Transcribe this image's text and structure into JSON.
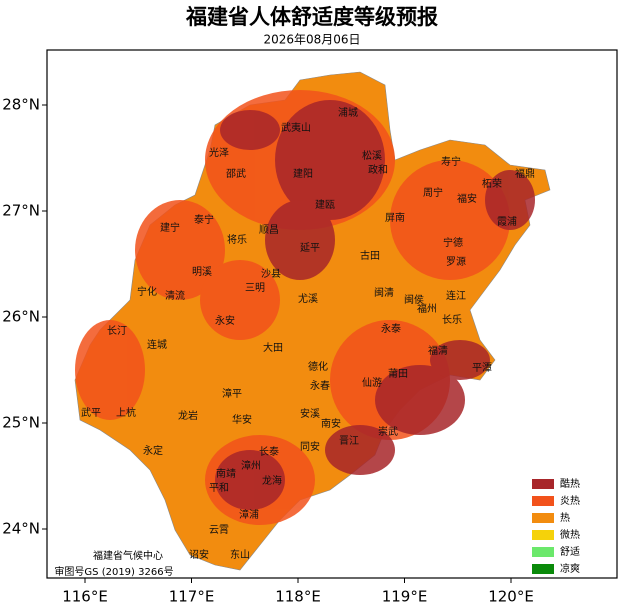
{
  "title": "福建省人体舒适度等级预报",
  "date": "2026年08月06日",
  "lon_ticks": [
    {
      "value": 116,
      "label": "116°E"
    },
    {
      "value": 117,
      "label": "117°E"
    },
    {
      "value": 118,
      "label": "118°E"
    },
    {
      "value": 119,
      "label": "119°E"
    },
    {
      "value": 120,
      "label": "120°E"
    }
  ],
  "lat_ticks": [
    {
      "value": 28,
      "label": "28°N"
    },
    {
      "value": 27,
      "label": "27°N"
    },
    {
      "value": 26,
      "label": "26°N"
    },
    {
      "value": 25,
      "label": "25°N"
    },
    {
      "value": 24,
      "label": "24°N"
    }
  ],
  "legend": [
    {
      "label": "酷热",
      "color": "#a8262a"
    },
    {
      "label": "炎热",
      "color": "#f2521b"
    },
    {
      "label": "热",
      "color": "#f28c0f"
    },
    {
      "label": "微热",
      "color": "#f5d20a"
    },
    {
      "label": "舒适",
      "color": "#6be86b"
    },
    {
      "label": "凉爽",
      "color": "#0a8a0a"
    }
  ],
  "places": [
    "浦城",
    "武夷山",
    "光泽",
    "松溪",
    "政和",
    "寿宁",
    "邵武",
    "建阳",
    "福鼎",
    "柘荣",
    "周宁",
    "福安",
    "建瓯",
    "屏南",
    "霞浦",
    "泰宁",
    "建宁",
    "将乐",
    "顺昌",
    "延平",
    "宁德",
    "古田",
    "罗源",
    "明溪",
    "沙县",
    "宁化",
    "清流",
    "三明",
    "闽清",
    "连江",
    "尤溪",
    "闽侯",
    "福州",
    "长乐",
    "永安",
    "长汀",
    "永泰",
    "连城",
    "福清",
    "大田",
    "平潭",
    "德化",
    "莆田",
    "永春",
    "仙游",
    "漳平",
    "武平",
    "上杭",
    "龙岩",
    "华安",
    "安溪",
    "南安",
    "晋江",
    "崇武",
    "同安",
    "长泰",
    "永定",
    "南靖",
    "漳州",
    "龙海",
    "平和",
    "漳浦",
    "云霄",
    "诏安",
    "东山"
  ],
  "footer": {
    "agency": "福建省气候中心",
    "approval": "审图号GS (2019) 3266号"
  }
}
